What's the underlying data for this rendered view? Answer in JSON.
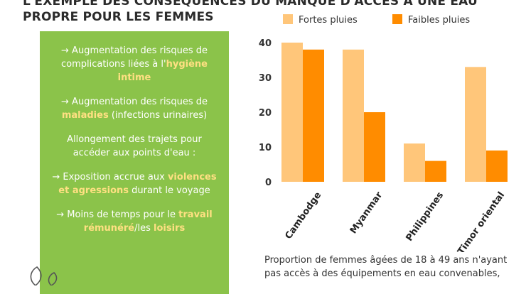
{
  "title_line1": "L'EXEMPLE DES CONSÉQUENCES DU MANQUE D'ACCÈS À UNE EAU",
  "title_line2": "PROPRE POUR LES FEMMES",
  "panel": {
    "p1_a": "→ Augmentation des risques de complications liées à l'",
    "p1_hl": "hygiène intime",
    "p2_a": "→ Augmentation des risques de ",
    "p2_hl": "maladies",
    "p2_b": " (infections urinaires)",
    "p3": "Allongement des trajets pour accéder aux points d'eau :",
    "p4_a": "→ Exposition accrue aux ",
    "p4_hl": "violences et agressions",
    "p4_b": " durant le voyage",
    "p5_a": "→ Moins de temps  pour le ",
    "p5_hl1": "travail rémunéré",
    "p5_sep": "/les ",
    "p5_hl2": "loisirs"
  },
  "caption": {
    "line1": "Proportion de femmes âgées de 18 à 49 ans n'ayant",
    "line2": "pas accès à des équipements en eau convenables,"
  },
  "colors": {
    "panel": "#8bc34a",
    "highlight": "#ffe082",
    "series_strong": "#ffc67a",
    "series_weak": "#ff8c00"
  },
  "chart_data": {
    "type": "bar",
    "categories": [
      "Cambodge",
      "Myanmar",
      "Philippines",
      "Timor oriental"
    ],
    "series": [
      {
        "name": "Fortes pluies",
        "values": [
          40,
          38,
          11,
          33
        ],
        "color": "#ffc67a"
      },
      {
        "name": "Faibles pluies",
        "values": [
          38,
          20,
          6,
          9
        ],
        "color": "#ff8c00"
      }
    ],
    "yticks": [
      0,
      10,
      20,
      30,
      40
    ],
    "ylim": [
      0,
      40
    ],
    "grid": false,
    "legend": "top"
  }
}
